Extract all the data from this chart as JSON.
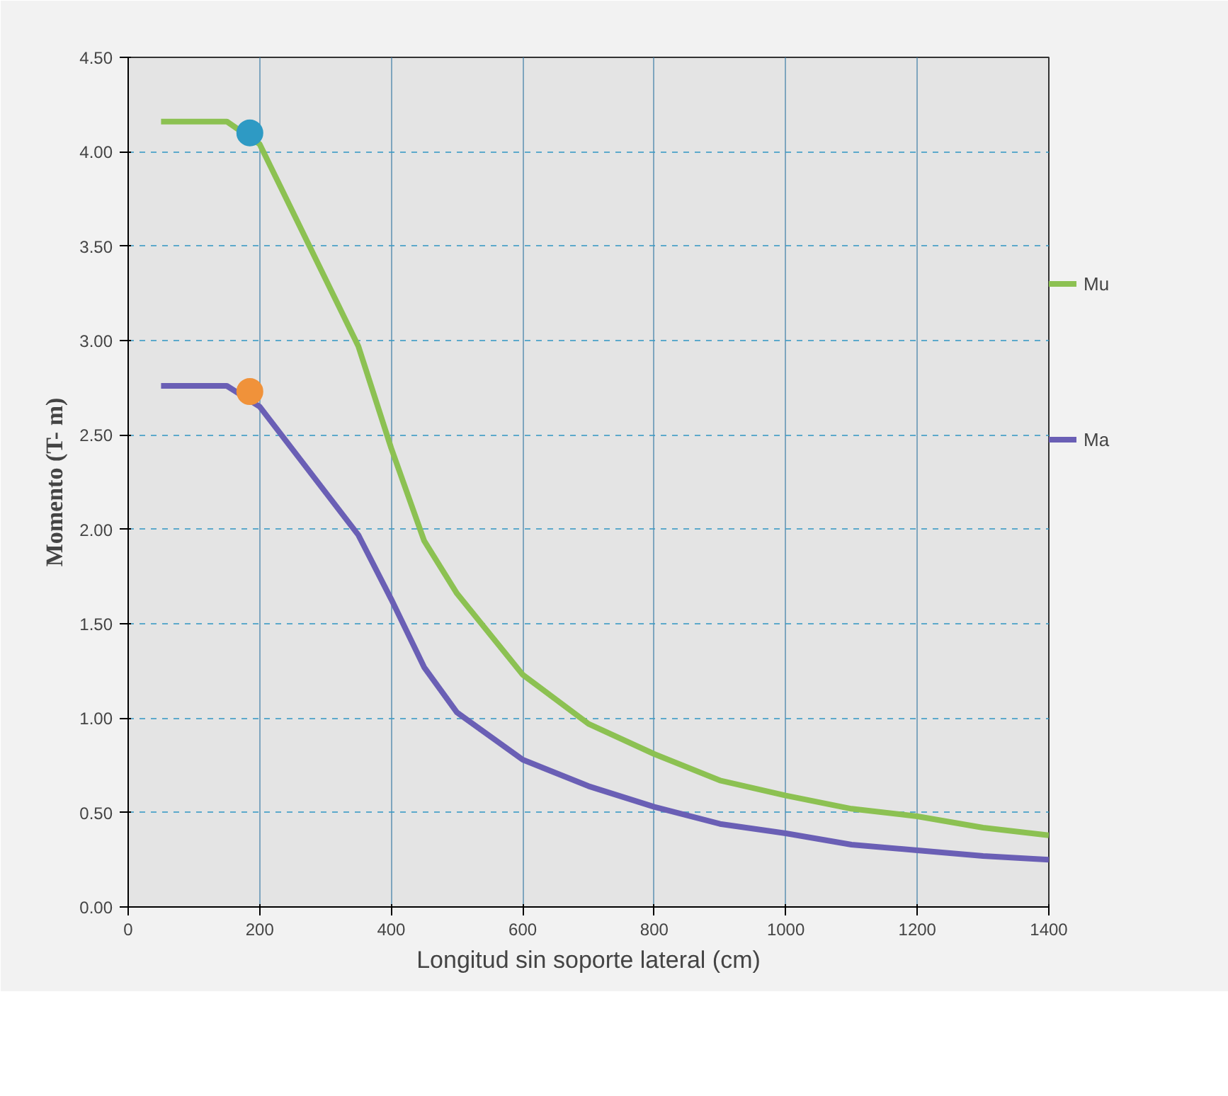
{
  "chart_data": {
    "type": "line",
    "xlabel": "Longitud sin soporte lateral (cm)",
    "ylabel": "Momento (T- m)",
    "xlim": [
      0,
      1400
    ],
    "xticks": [
      0,
      200,
      400,
      600,
      800,
      1000,
      1200,
      1400
    ],
    "ylim": [
      0,
      4.5
    ],
    "yticks": [
      {
        "value": 0,
        "label": "0.00"
      },
      {
        "value": 0.5,
        "label": "0.50"
      },
      {
        "value": 1,
        "label": "1.00"
      },
      {
        "value": 1.5,
        "label": "1.50"
      },
      {
        "value": 2,
        "label": "2.00"
      },
      {
        "value": 2.5,
        "label": "2.50"
      },
      {
        "value": 3,
        "label": "3.00"
      },
      {
        "value": 3.5,
        "label": "3.50"
      },
      {
        "value": 4,
        "label": "4.00"
      },
      {
        "value": 4.5,
        "label": "4.50"
      }
    ],
    "grid": true,
    "legend": "right",
    "marker": "none",
    "x": [
      50,
      150,
      200,
      350,
      400,
      450,
      500,
      600,
      700,
      800,
      900,
      1000,
      1100,
      1200,
      1300,
      1400
    ],
    "series": [
      {
        "name": "Mu",
        "color": "#8cc152",
        "values": [
          4.16,
          4.16,
          4.04,
          2.97,
          2.43,
          1.94,
          1.66,
          1.23,
          0.97,
          0.81,
          0.67,
          0.59,
          0.52,
          0.48,
          0.42,
          0.38
        ]
      },
      {
        "name": "Ma",
        "color": "#6a5fb5",
        "values": [
          2.76,
          2.76,
          2.65,
          1.97,
          1.63,
          1.27,
          1.03,
          0.78,
          0.64,
          0.53,
          0.44,
          0.39,
          0.33,
          0.3,
          0.27,
          0.25
        ]
      },
      {
        "type": "scatter",
        "marker": "circle",
        "color": "#2e9ac4",
        "x": [
          185
        ],
        "values": [
          4.1
        ]
      },
      {
        "type": "scatter",
        "marker": "circle",
        "color": "#f0923a",
        "x": [
          185
        ],
        "values": [
          2.73
        ]
      }
    ]
  }
}
